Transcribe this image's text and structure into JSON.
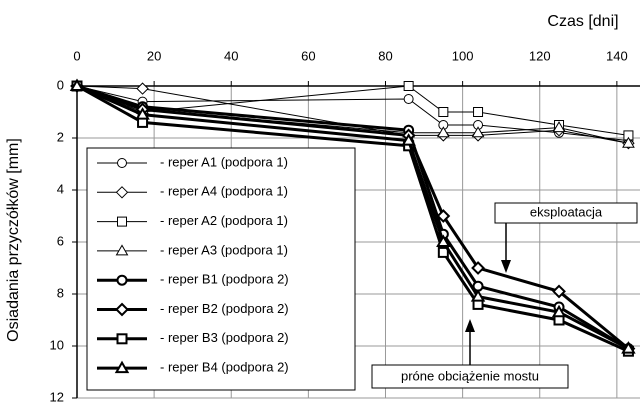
{
  "chart_data": {
    "type": "line",
    "x_label": "Czas  [dni]",
    "y_label": "Osiadania przyczółków  [mm]",
    "x": [
      0,
      17,
      86,
      95,
      104,
      125,
      143
    ],
    "xlim": [
      0,
      146
    ],
    "xticks": [
      0,
      20,
      40,
      60,
      80,
      100,
      120,
      140
    ],
    "ylim": [
      0,
      12
    ],
    "yticks": [
      0,
      2,
      4,
      6,
      8,
      10,
      12
    ],
    "y_inverted": true,
    "grid": true,
    "series": [
      {
        "name": "- reper A1 (podpora 1)",
        "color": "#000000",
        "marker": "circle",
        "line_width": 1,
        "values": [
          0,
          0.6,
          0.5,
          1.5,
          1.5,
          1.8,
          2.1
        ]
      },
      {
        "name": "- reper A4 (podpora 1)",
        "color": "#000000",
        "marker": "diamond",
        "line_width": 1,
        "values": [
          0,
          0.1,
          1.9,
          1.9,
          1.9,
          1.7,
          2.2
        ]
      },
      {
        "name": "- reper A2 (podpora 1)",
        "color": "#000000",
        "marker": "square",
        "line_width": 1,
        "values": [
          0,
          1.0,
          0.0,
          1.0,
          1.0,
          1.5,
          1.9
        ]
      },
      {
        "name": "- reper A3 (podpora 1)",
        "color": "#000000",
        "marker": "triangle",
        "line_width": 1,
        "values": [
          0,
          0.9,
          1.8,
          1.8,
          1.8,
          1.6,
          2.2
        ]
      },
      {
        "name": "- reper B1 (podpora 2)",
        "color": "#000000",
        "marker": "circle",
        "line_width": 3,
        "values": [
          0,
          0.8,
          1.7,
          5.7,
          7.7,
          8.5,
          10.1
        ]
      },
      {
        "name": "- reper B2 (podpora 2)",
        "color": "#000000",
        "marker": "diamond",
        "line_width": 3,
        "values": [
          0,
          0.9,
          1.9,
          5.0,
          7.0,
          7.9,
          10.1
        ]
      },
      {
        "name": "- reper B3 (podpora 2)",
        "color": "#000000",
        "marker": "square",
        "line_width": 3,
        "values": [
          0,
          1.4,
          2.3,
          6.4,
          8.4,
          9.0,
          10.2
        ]
      },
      {
        "name": "- reper B4 (podpora 2)",
        "color": "#000000",
        "marker": "triangle",
        "line_width": 3,
        "values": [
          0,
          1.1,
          2.1,
          6.0,
          8.1,
          8.7,
          10.1
        ]
      }
    ],
    "annotations": [
      {
        "text": "eksploatacja"
      },
      {
        "text": "próne obciążenie mostu"
      }
    ]
  }
}
